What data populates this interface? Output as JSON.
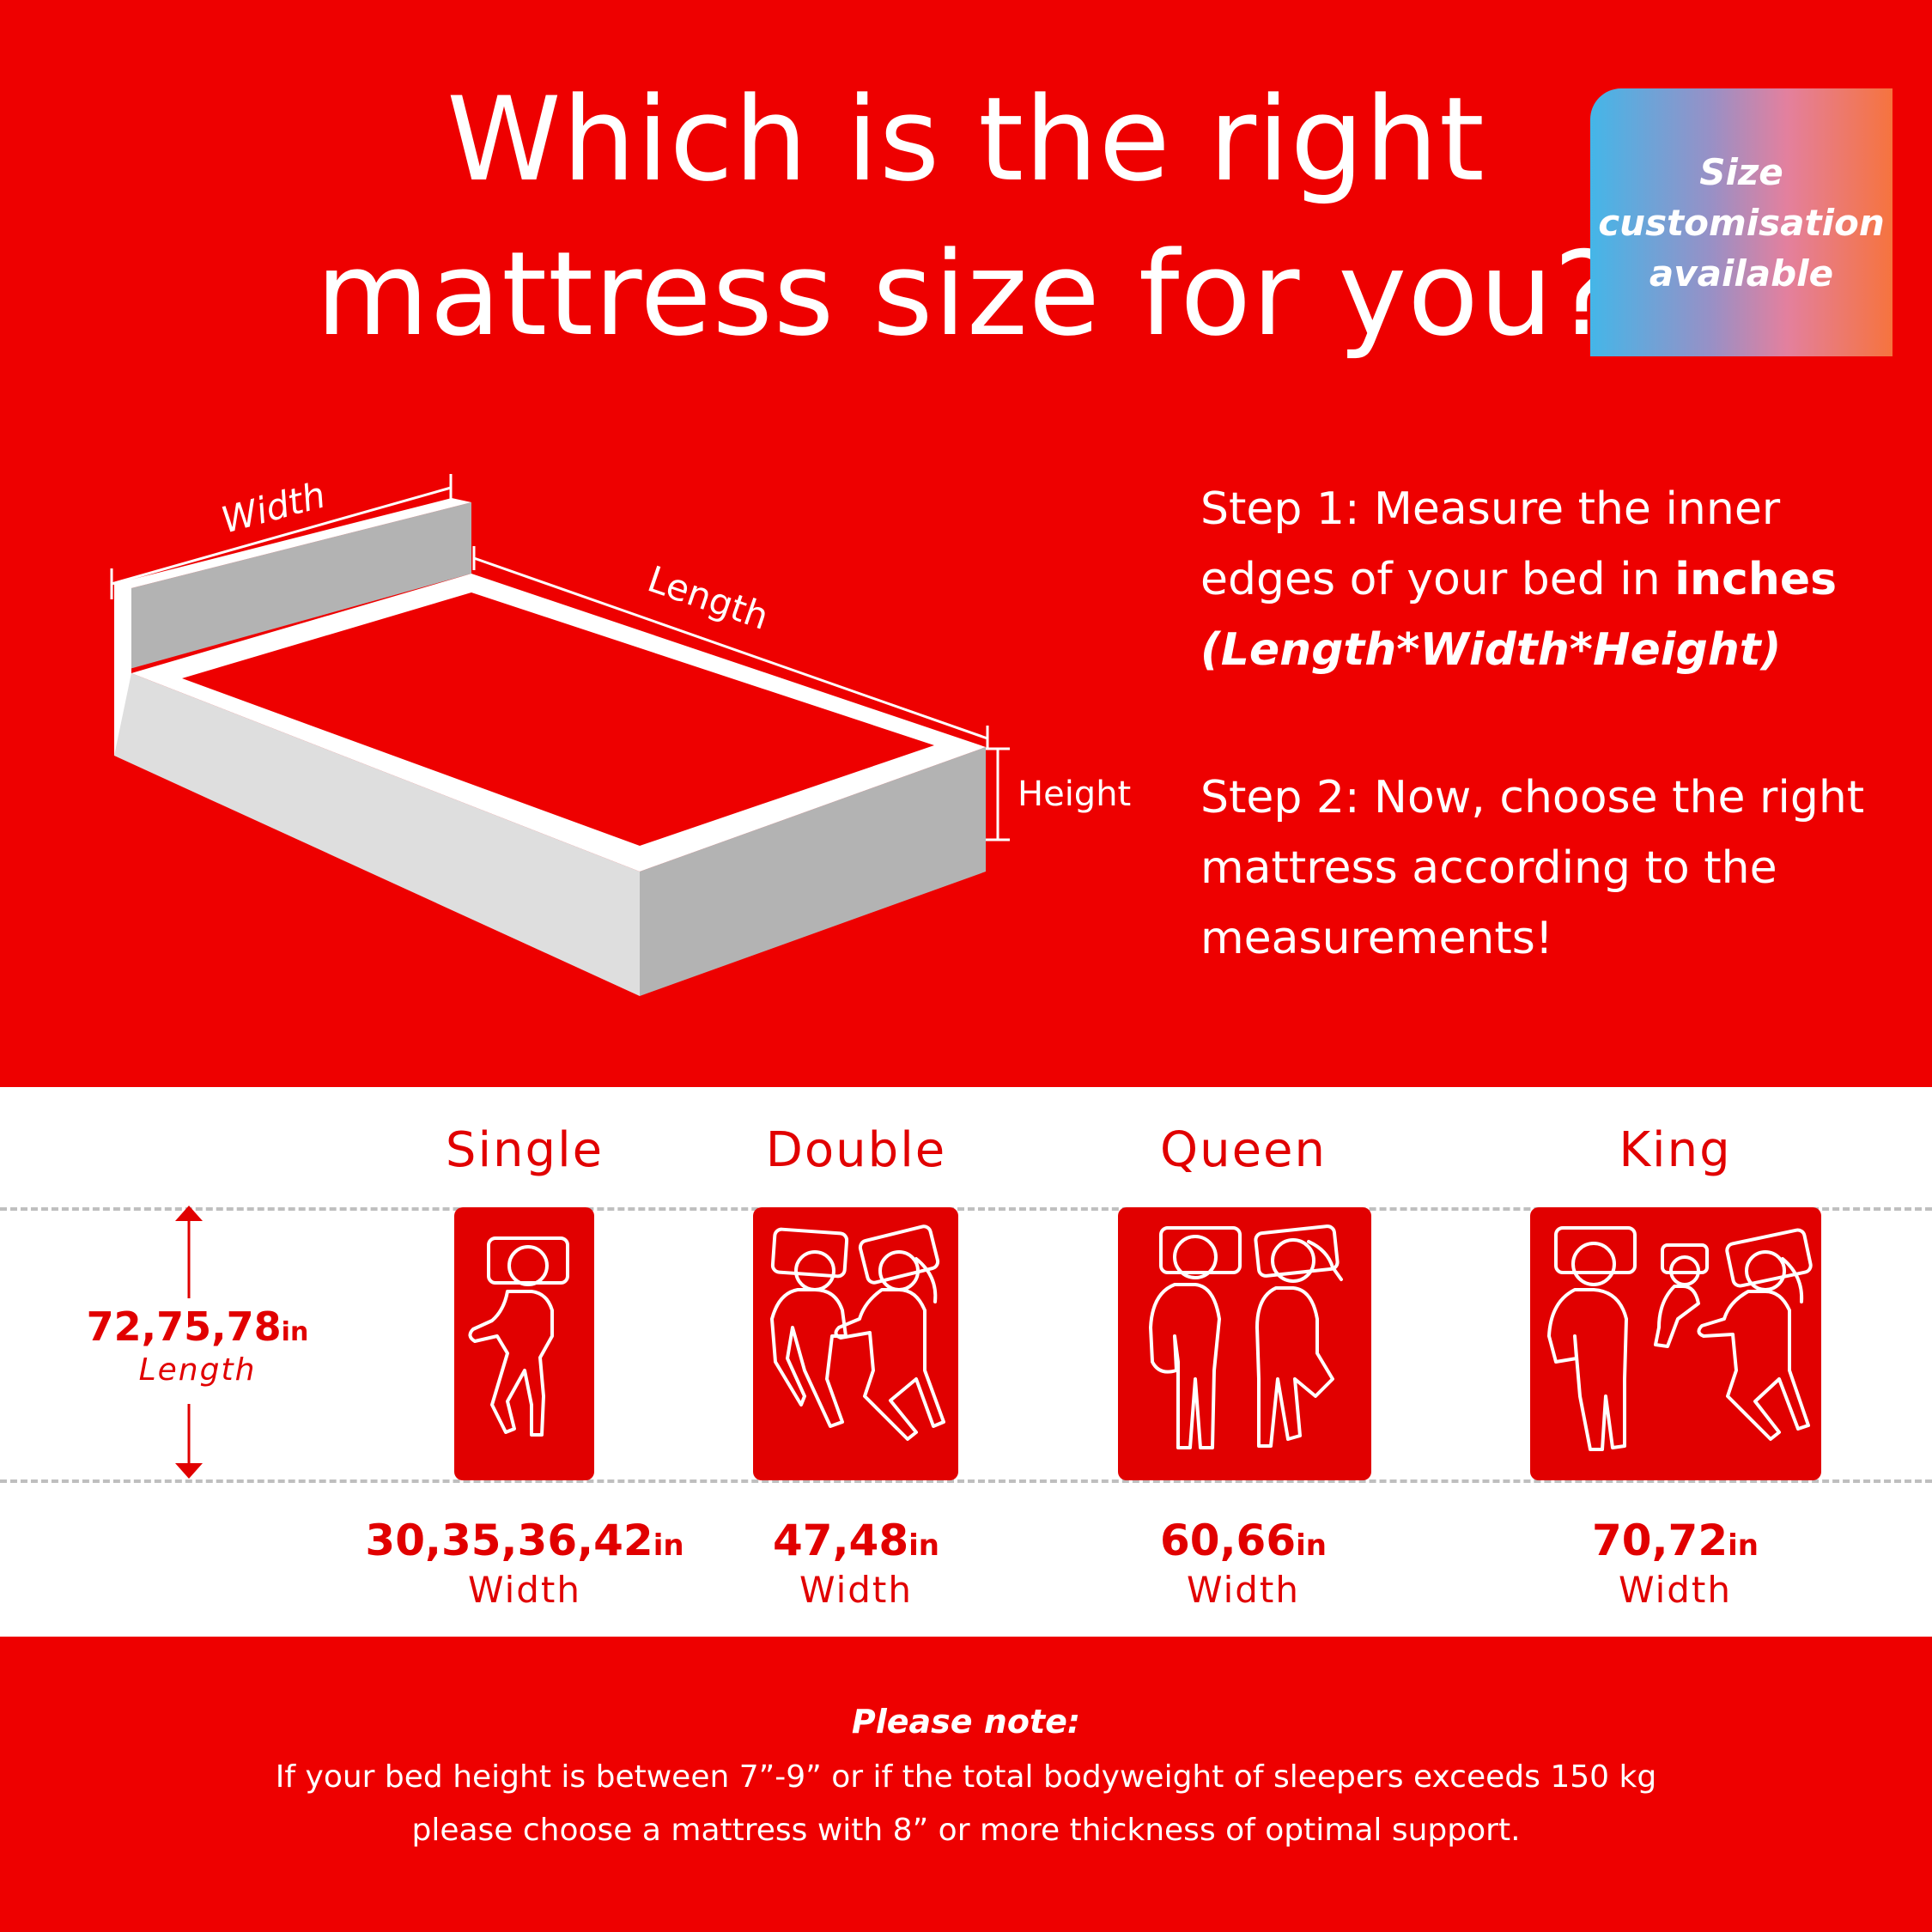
{
  "header": {
    "title_line1": "Which is the right",
    "title_line2": "mattress size for you?",
    "badge": {
      "line1": "Size",
      "line2": "customisation",
      "line3": "available"
    }
  },
  "diagram": {
    "width_label": "Width",
    "length_label": "Length",
    "height_label": "Height"
  },
  "steps": {
    "step1_prefix": "Step 1: Measure the inner",
    "step1_mid": "edges of your bed in ",
    "step1_bold": "inches",
    "step1_formula": "(Length*Width*Height)",
    "step2_line1": "Step 2: Now, choose the right",
    "step2_line2": "mattress according to the",
    "step2_line3": "measurements!"
  },
  "sizes": {
    "length_values": "72,75,78",
    "length_unit": "in",
    "length_label": "Length",
    "items": [
      {
        "name": "Single",
        "widths": "30,35,36,42",
        "unit": "in",
        "width_label": "Width",
        "icon": "single-sleeper-icon"
      },
      {
        "name": "Double",
        "widths": "47,48",
        "unit": "in",
        "width_label": "Width",
        "icon": "couple-sleepers-icon"
      },
      {
        "name": "Queen",
        "widths": "60,66",
        "unit": "in",
        "width_label": "Width",
        "icon": "couple-sleepers-icon"
      },
      {
        "name": "King",
        "widths": "70,72",
        "unit": "in",
        "width_label": "Width",
        "icon": "family-sleepers-icon"
      }
    ]
  },
  "note": {
    "title": "Please note:",
    "line1": "If your bed height is between 7”-9” or if the total bodyweight of sleepers exceeds 150 kg",
    "line2": "please choose a mattress with 8” or more thickness of optimal support."
  },
  "colors": {
    "brand_red": "#ee0000",
    "white": "#ffffff",
    "bed_light": "#dcdcdc",
    "bed_dark": "#b3b3b3"
  }
}
